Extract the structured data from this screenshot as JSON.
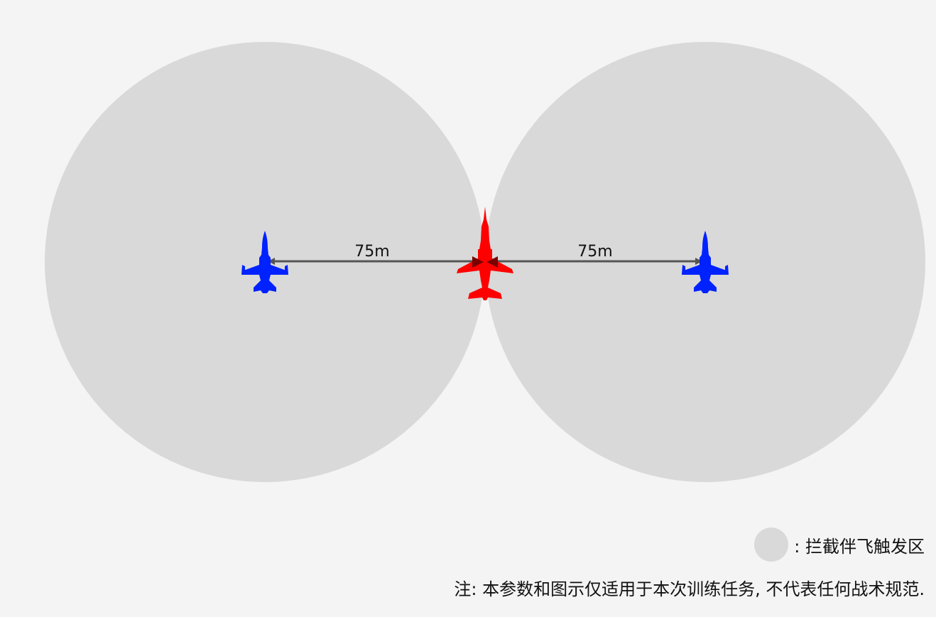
{
  "colors": {
    "background": "#f4f4f4",
    "zone": "#d9d9d9",
    "wingman": "#0022ff",
    "lead": "#ff0000",
    "arrow": "#555555"
  },
  "diagram": {
    "left_distance_label": "75m",
    "right_distance_label": "75m",
    "icons": {
      "wingman": "fighter-jet-icon",
      "lead": "trainer-jet-icon"
    }
  },
  "legend": {
    "text": ": 拦截伴飞触发区"
  },
  "note": {
    "text": "注: 本参数和图示仅适用于本次训练任务, 不代表任何战术规范."
  }
}
